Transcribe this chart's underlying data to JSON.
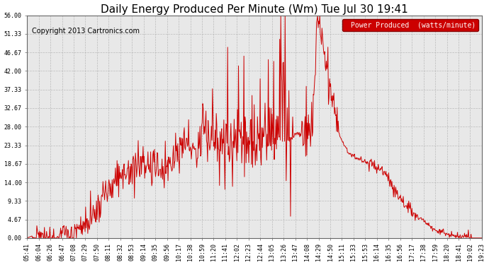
{
  "title": "Daily Energy Produced Per Minute (Wm) Tue Jul 30 19:41",
  "copyright": "Copyright 2013 Cartronics.com",
  "legend_label": "Power Produced  (watts/minute)",
  "legend_bg": "#cc0000",
  "legend_text_color": "#ffffff",
  "line_color": "#cc0000",
  "bg_color": "#ffffff",
  "plot_bg_color": "#e8e8e8",
  "grid_color": "#b0b0b0",
  "ylim": [
    0,
    56.0
  ],
  "yticks": [
    0.0,
    4.67,
    9.33,
    14.0,
    18.67,
    23.33,
    28.0,
    32.67,
    37.33,
    42.0,
    46.67,
    51.33,
    56.0
  ],
  "ytick_labels": [
    "0.00",
    "4.67",
    "9.33",
    "14.00",
    "18.67",
    "23.33",
    "28.00",
    "32.67",
    "37.33",
    "42.00",
    "46.67",
    "51.33",
    "56.00"
  ],
  "xtick_labels": [
    "05:41",
    "06:04",
    "06:26",
    "06:47",
    "07:08",
    "07:29",
    "07:50",
    "08:11",
    "08:32",
    "08:53",
    "09:14",
    "09:35",
    "09:56",
    "10:17",
    "10:38",
    "10:59",
    "11:20",
    "11:41",
    "12:02",
    "12:23",
    "12:44",
    "13:05",
    "13:26",
    "13:47",
    "14:08",
    "14:29",
    "14:50",
    "15:11",
    "15:33",
    "15:53",
    "16:14",
    "16:35",
    "16:56",
    "17:17",
    "17:38",
    "17:59",
    "18:20",
    "18:41",
    "19:02",
    "19:23"
  ],
  "title_fontsize": 11,
  "copyright_fontsize": 7,
  "axis_fontsize": 6,
  "legend_fontsize": 7,
  "base_curve": [
    0.0,
    0.0,
    0.0,
    0.0,
    0.2,
    0.3,
    0.5,
    0.8,
    1.2,
    1.8,
    2.5,
    3.5,
    5.0,
    7.0,
    9.5,
    12.0,
    14.5,
    16.0,
    17.0,
    17.5,
    18.0,
    18.2,
    18.0,
    17.5,
    17.0,
    17.5,
    18.5,
    20.0,
    22.0,
    24.0,
    22.0,
    23.0,
    24.0,
    25.0,
    25.0,
    24.5,
    24.0,
    24.0,
    24.0,
    23.5,
    24.0,
    24.5,
    25.0,
    25.5,
    26.0,
    26.5,
    25.0,
    24.0,
    25.0,
    26.0,
    26.0,
    26.5,
    27.0,
    56.0,
    48.0,
    40.0,
    33.0,
    26.0,
    23.0,
    21.0,
    20.0,
    19.5,
    19.0,
    18.5,
    18.0,
    17.0,
    15.0,
    12.0,
    10.0,
    8.5,
    7.0,
    5.5,
    4.5,
    3.5,
    2.5,
    1.5,
    0.8,
    0.3,
    0.1,
    0.0,
    0.0,
    0.0,
    0.0,
    0.0
  ]
}
